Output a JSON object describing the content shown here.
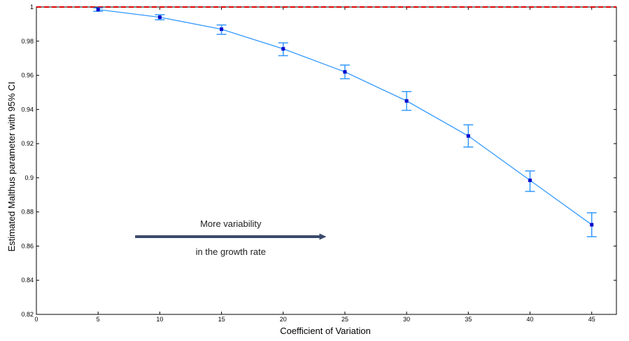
{
  "chart_data": {
    "type": "line",
    "xlabel": "Coefficient of Variation",
    "ylabel": "Estimated Malthus parameter with 95% CI",
    "xlim": [
      0,
      47
    ],
    "ylim": [
      0.82,
      1.0
    ],
    "x_ticks": [
      "0",
      "5",
      "10",
      "15",
      "20",
      "25",
      "30",
      "35",
      "40",
      "45"
    ],
    "y_ticks": [
      "0.82",
      "0.84",
      "0.86",
      "0.88",
      "0.9",
      "0.92",
      "0.94",
      "0.96",
      "0.98",
      "1"
    ],
    "grid": false,
    "series": [
      {
        "x": [
          5,
          10,
          15,
          20,
          25,
          30,
          35,
          40,
          45
        ],
        "values": [
          0.9985,
          0.994,
          0.987,
          0.9755,
          0.962,
          0.945,
          0.9245,
          0.8985,
          0.8725
        ],
        "ci_lower": [
          0.9975,
          0.9925,
          0.984,
          0.9715,
          0.958,
          0.9395,
          0.918,
          0.892,
          0.8655
        ],
        "ci_upper": [
          0.9995,
          0.9955,
          0.9895,
          0.979,
          0.966,
          0.9505,
          0.931,
          0.904,
          0.8795
        ],
        "color": "#3399ff",
        "marker_color": "#0000cc"
      }
    ],
    "reference_line": {
      "y": 1.0,
      "color": "#dd0000",
      "style": "dashed"
    },
    "annotation": {
      "line1": "More variability",
      "line2": "in the growth rate",
      "arrow_from_x": 8,
      "arrow_to_x": 23.5,
      "arrow_y": 0.8655,
      "color": "#3a4a6b"
    }
  }
}
